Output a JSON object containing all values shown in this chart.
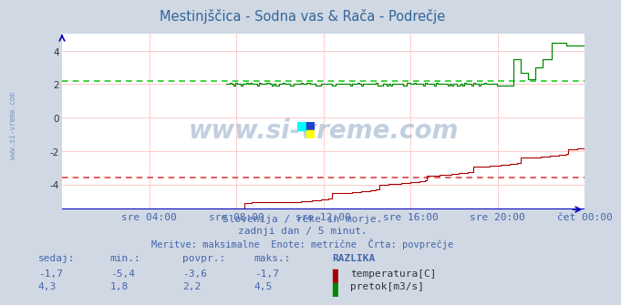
{
  "title": "Mestinjščica - Sodna vas & Rača - Podrečje",
  "bg_color": "#d0d8e4",
  "plot_bg_color": "#ffffff",
  "grid_color": "#ffcccc",
  "xlabel_color": "#4466aa",
  "n_points": 288,
  "ylim": [
    -5.5,
    5.0
  ],
  "yticks": [
    -4,
    -2,
    0,
    2,
    4
  ],
  "xtick_labels": [
    "sre 04:00",
    "sre 08:00",
    "sre 12:00",
    "sre 16:00",
    "sre 20:00",
    "čet 00:00"
  ],
  "xtick_positions": [
    240,
    480,
    720,
    960,
    1200,
    1440
  ],
  "temp_avg": -3.6,
  "flow_avg": 2.2,
  "temp_color": "#aa0000",
  "flow_color": "#008800",
  "avg_temp_color": "#dd4444",
  "avg_flow_color": "#22cc22",
  "x_axis_color": "#0000bb",
  "subtitle1": "Slovenija / reke in morje.",
  "subtitle2": "zadnji dan / 5 minut.",
  "subtitle3": "Meritve: maksimalne  Enote: metrične  Črta: povprečje",
  "table_headers": [
    "sedaj:",
    "min.:",
    "povpr.:",
    "maks.:",
    "RAZLIKA"
  ],
  "temp_row": [
    "-1,7",
    "-5,4",
    "-3,6",
    "-1,7"
  ],
  "flow_row": [
    "4,3",
    "1,8",
    "2,2",
    "4,5"
  ],
  "temp_label": "temperatura[C]",
  "flow_label": "pretok[m3/s]",
  "watermark": "www.si-vreme.com",
  "side_text": "www.si-vreme.com"
}
